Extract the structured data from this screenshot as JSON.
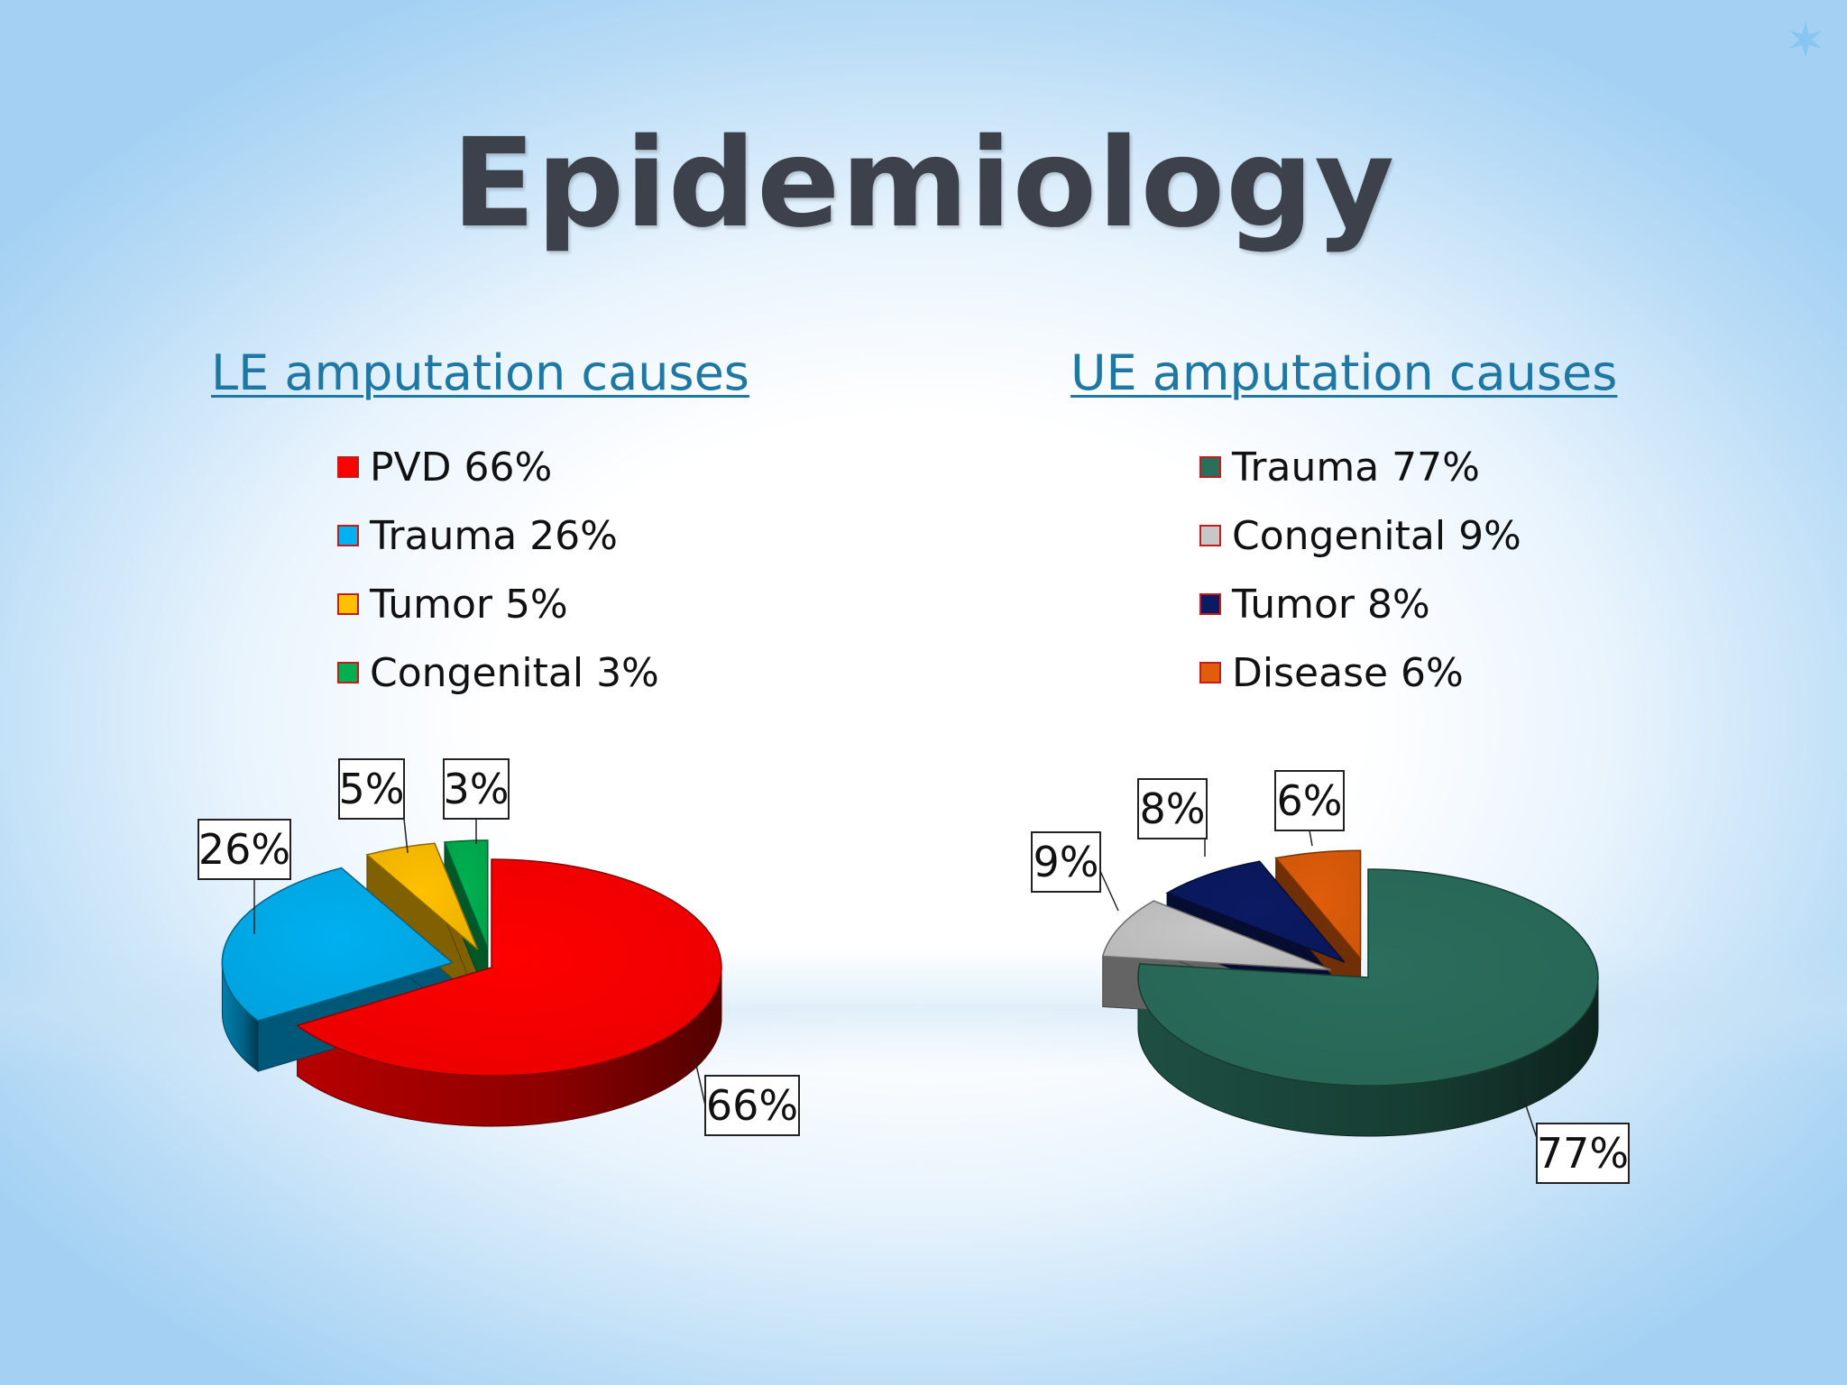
{
  "title": "Epidemiology",
  "colors": {
    "background_edge": "#a4d1f3",
    "title_text": "#3d414b",
    "heading_text": "#1f78a4"
  },
  "chart_data": [
    {
      "type": "pie",
      "title": "LE amputation causes",
      "legend_position": "top",
      "categories": [
        "PVD",
        "Trauma",
        "Tumor",
        "Congenital"
      ],
      "values": [
        66,
        26,
        5,
        3
      ],
      "unit": "%",
      "data_labels": [
        "66%",
        "26%",
        "5%",
        "3%"
      ],
      "legend_labels": [
        "PVD 66%",
        "Trauma 26%",
        "Tumor 5%",
        "Congenital 3%"
      ],
      "colors": [
        "#fe0000",
        "#00b0f0",
        "#ffc000",
        "#00b050"
      ],
      "exploded": [
        false,
        true,
        true,
        true
      ]
    },
    {
      "type": "pie",
      "title": "UE amputation causes",
      "legend_position": "top",
      "categories": [
        "Trauma",
        "Congenital",
        "Tumor",
        "Disease"
      ],
      "values": [
        77,
        9,
        8,
        6
      ],
      "unit": "%",
      "data_labels": [
        "77%",
        "9%",
        "8%",
        "6%"
      ],
      "legend_labels": [
        "Trauma 77%",
        "Congenital 9%",
        "Tumor 8%",
        "Disease 6%"
      ],
      "colors": [
        "#2a6e5c",
        "#c7c7c7",
        "#0b1a62",
        "#e05d0b"
      ],
      "exploded": [
        false,
        true,
        true,
        true
      ]
    }
  ]
}
